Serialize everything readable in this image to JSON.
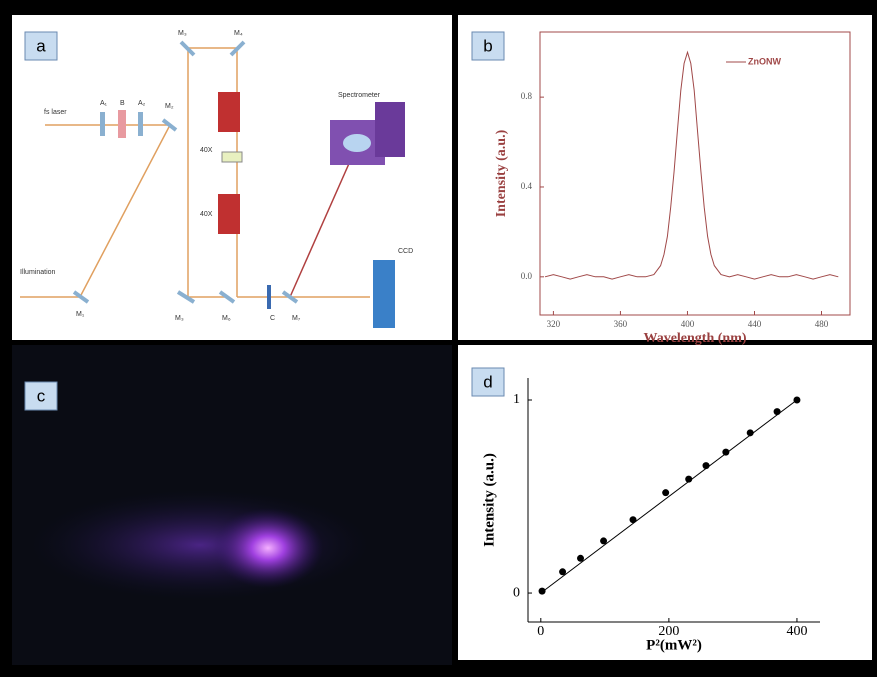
{
  "panel_labels": [
    "a",
    "b",
    "c",
    "d"
  ],
  "diagram": {
    "labels": [
      "fs laser",
      "A₁",
      "B",
      "A₂",
      "M₂",
      "M₃",
      "M₄",
      "40X",
      "40X",
      "Spectrometer",
      "CCD",
      "Illumination",
      "M₁",
      "M₃",
      "M₆",
      "C",
      "M₇"
    ]
  },
  "chart_data": [
    {
      "type": "line",
      "xlabel": "Wavelength (nm)",
      "ylabel": "Intensity (a.u.)",
      "color": "#a04848",
      "xlim": [
        312,
        497
      ],
      "ylim": [
        -0.17,
        1.09
      ],
      "xticks": [
        320,
        360,
        400,
        440,
        480
      ],
      "yticks": [
        {
          "value": 0,
          "label": "0.0"
        },
        {
          "value": 0.4,
          "label": "0.4"
        },
        {
          "value": 0.8,
          "label": "0.8"
        }
      ],
      "series": [
        {
          "name": "ZnONW",
          "color": "#a04848",
          "x": [
            315,
            320,
            325,
            330,
            335,
            340,
            345,
            350,
            355,
            360,
            365,
            370,
            375,
            380,
            384,
            386,
            388,
            390,
            392,
            394,
            396,
            398,
            400,
            402,
            404,
            406,
            408,
            410,
            412,
            414,
            416,
            420,
            425,
            430,
            435,
            440,
            445,
            450,
            455,
            460,
            465,
            470,
            475,
            480,
            485,
            490
          ],
          "values": [
            0,
            0.01,
            0,
            -0.01,
            0,
            0.01,
            0,
            0,
            -0.01,
            0,
            0.01,
            0,
            0,
            0.01,
            0.05,
            0.1,
            0.18,
            0.31,
            0.47,
            0.65,
            0.83,
            0.95,
            1.0,
            0.95,
            0.83,
            0.65,
            0.47,
            0.31,
            0.18,
            0.1,
            0.05,
            0.01,
            0,
            0.01,
            0,
            -0.01,
            0,
            0.01,
            0,
            0,
            0.01,
            0,
            -0.01,
            0,
            0.01,
            0
          ]
        }
      ]
    },
    {
      "type": "scatter",
      "xlabel": "P²(mW²)",
      "ylabel": "Intensity (a.u.)",
      "color": "#000000",
      "xlim": [
        -20,
        436
      ],
      "ylim": [
        -0.15,
        1.114
      ],
      "xticks": [
        0,
        200,
        400
      ],
      "yticks": [
        0,
        1
      ],
      "series": [
        {
          "x": [
            2,
            34,
            62,
            98,
            144,
            195,
            231,
            258,
            289,
            327,
            369,
            400
          ],
          "values": [
            0.01,
            0.11,
            0.18,
            0.27,
            0.38,
            0.52,
            0.59,
            0.66,
            0.73,
            0.83,
            0.94,
            1.0
          ]
        },
        {
          "x": [
            0,
            400
          ],
          "values": [
            0,
            1
          ]
        }
      ]
    }
  ]
}
